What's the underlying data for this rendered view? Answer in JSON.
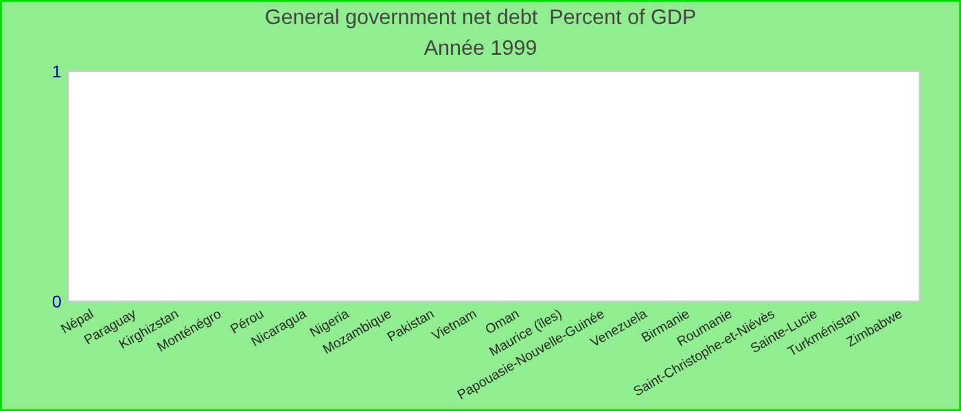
{
  "chart_data": {
    "type": "bar",
    "title": "General government net debt  Percent of GDP",
    "subtitle": "Année 1999",
    "categories": [
      "Népal",
      "Paraguay",
      "Kirghizstan",
      "Monténégro",
      "Pérou",
      "Nicaragua",
      "Nigeria",
      "Mozambique",
      "Pakistan",
      "Vietnam",
      "Oman",
      "Maurice (îles)",
      "Papouasie-Nouvelle-Guinée",
      "Venezuela",
      "Birmanie",
      "Roumanie",
      "Saint-Christophe-et-Niévès",
      "Sainte-Lucie",
      "Turkménistan",
      "Zimbabwe"
    ],
    "values": [
      null,
      null,
      null,
      null,
      null,
      null,
      null,
      null,
      null,
      null,
      null,
      null,
      null,
      null,
      null,
      null,
      null,
      null,
      null,
      null
    ],
    "ylim": [
      0,
      1
    ],
    "yticks": [
      0,
      1
    ],
    "grid": false,
    "legend": false
  }
}
